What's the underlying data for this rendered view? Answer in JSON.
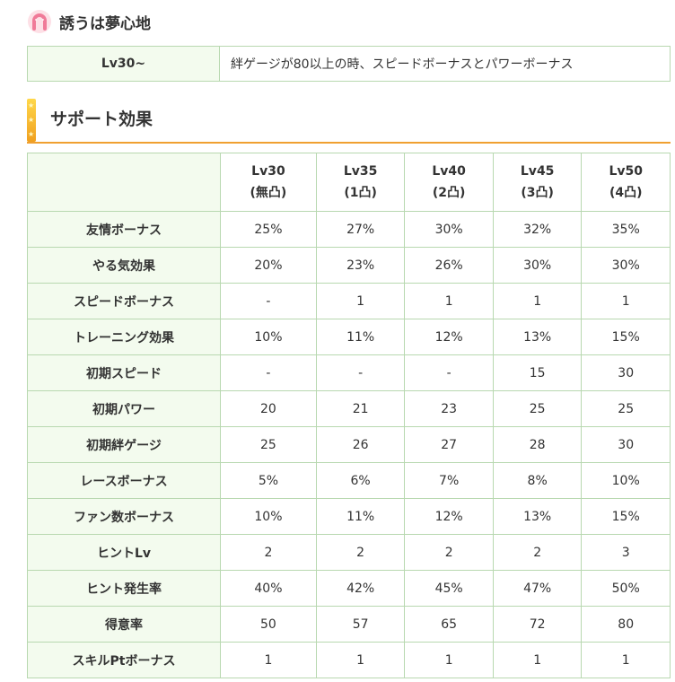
{
  "unique_skill": {
    "title": "誘うは夢心地",
    "icon": "horseshoe-icon",
    "level_label": "Lv30~",
    "effect": "絆ゲージが80以上の時、スピードボーナスとパワーボーナス"
  },
  "section": {
    "title": "サポート効果"
  },
  "support_table": {
    "columns": [
      {
        "level": "Lv30",
        "note": "(無凸)"
      },
      {
        "level": "Lv35",
        "note": "(1凸)"
      },
      {
        "level": "Lv40",
        "note": "(2凸)"
      },
      {
        "level": "Lv45",
        "note": "(3凸)"
      },
      {
        "level": "Lv50",
        "note": "(4凸)"
      }
    ],
    "rows": [
      {
        "label": "友情ボーナス",
        "values": [
          "25%",
          "27%",
          "30%",
          "32%",
          "35%"
        ]
      },
      {
        "label": "やる気効果",
        "values": [
          "20%",
          "23%",
          "26%",
          "30%",
          "30%"
        ]
      },
      {
        "label": "スピードボーナス",
        "values": [
          "-",
          "1",
          "1",
          "1",
          "1"
        ]
      },
      {
        "label": "トレーニング効果",
        "values": [
          "10%",
          "11%",
          "12%",
          "13%",
          "15%"
        ]
      },
      {
        "label": "初期スピード",
        "values": [
          "-",
          "-",
          "-",
          "15",
          "30"
        ]
      },
      {
        "label": "初期パワー",
        "values": [
          "20",
          "21",
          "23",
          "25",
          "25"
        ]
      },
      {
        "label": "初期絆ゲージ",
        "values": [
          "25",
          "26",
          "27",
          "28",
          "30"
        ]
      },
      {
        "label": "レースボーナス",
        "values": [
          "5%",
          "6%",
          "7%",
          "8%",
          "10%"
        ]
      },
      {
        "label": "ファン数ボーナス",
        "values": [
          "10%",
          "11%",
          "12%",
          "13%",
          "15%"
        ]
      },
      {
        "label": "ヒントLv",
        "values": [
          "2",
          "2",
          "2",
          "2",
          "3"
        ]
      },
      {
        "label": "ヒント発生率",
        "values": [
          "40%",
          "42%",
          "45%",
          "47%",
          "50%"
        ]
      },
      {
        "label": "得意率",
        "values": [
          "50",
          "57",
          "65",
          "72",
          "80"
        ]
      },
      {
        "label": "スキルPtボーナス",
        "values": [
          "1",
          "1",
          "1",
          "1",
          "1"
        ]
      }
    ]
  }
}
